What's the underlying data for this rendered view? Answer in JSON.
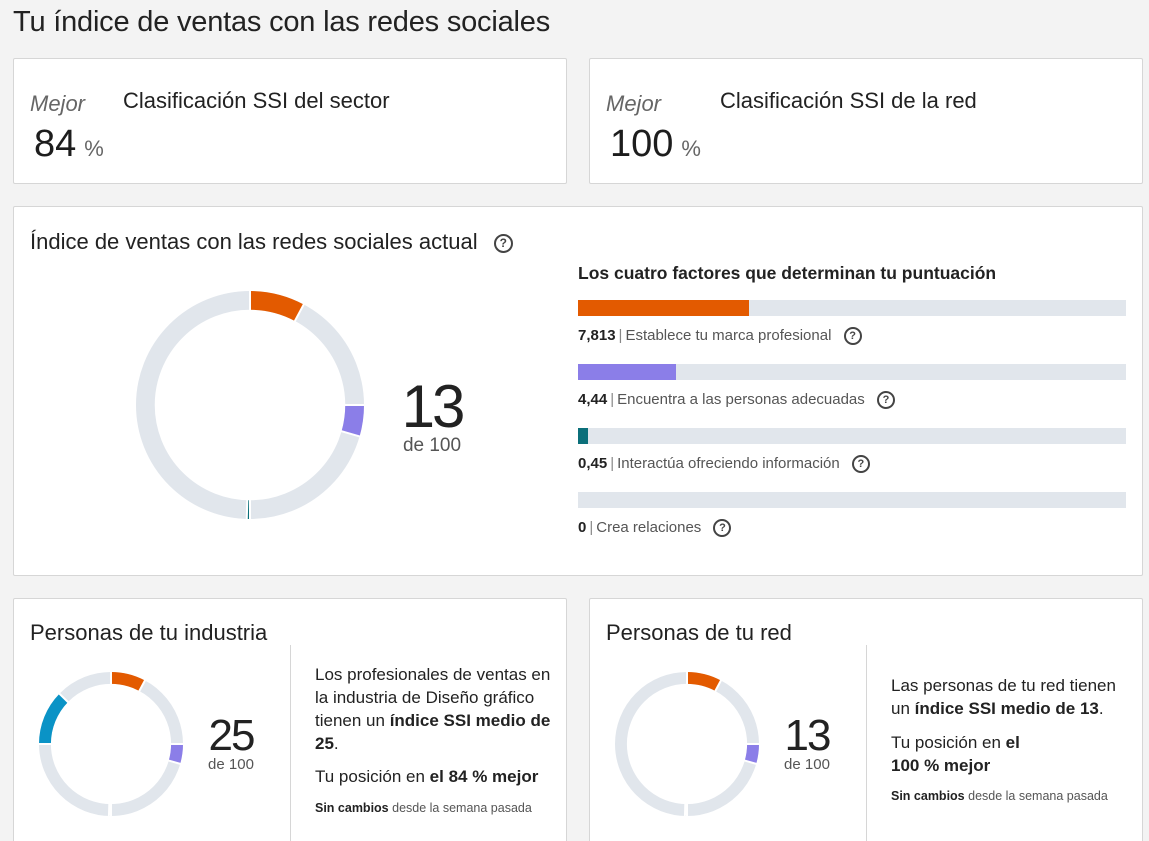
{
  "page_title": "Tu índice de ventas con las redes sociales",
  "rank_cards": [
    {
      "qualifier": "Mejor",
      "value": "84",
      "unit": "%",
      "title": "Clasificación SSI del sector"
    },
    {
      "qualifier": "Mejor",
      "value": "100",
      "unit": "%",
      "title": "Clasificación SSI de la red"
    }
  ],
  "current": {
    "title": "Índice de ventas con las redes sociales actual",
    "score": "13",
    "out_of": "de 100",
    "factors_title": "Los cuatro factores que determinan tu puntuación",
    "factors": [
      {
        "value": "7,813",
        "label": "Establece tu marca profesional",
        "fraction": 0.3125,
        "color": "#e35a00"
      },
      {
        "value": "4,44",
        "label": "Encuentra a las personas adecuadas",
        "fraction": 0.178,
        "color": "#8b7ee8"
      },
      {
        "value": "0,45",
        "label": "Interactúa ofreciendo información",
        "fraction": 0.018,
        "color": "#0b6f7a"
      },
      {
        "value": "0",
        "label": "Crea relaciones",
        "fraction": 0,
        "color": "#0a93c6"
      }
    ],
    "separator": "|"
  },
  "industry": {
    "title": "Personas de tu industria",
    "score": "25",
    "out_of": "de 100",
    "desc_plain1": "Los profesionales de ventas en la industria de Diseño gráfico tienen un ",
    "desc_bold1": "índice SSI medio de 25",
    "desc_end1": ".",
    "pos_plain": "Tu posición en ",
    "pos_bold": "el 84 % mejor",
    "change_bold": "Sin cambios",
    "change_plain": " desde la semana pasada",
    "factors": [
      7.813,
      4.44,
      0.45,
      12.3
    ]
  },
  "network": {
    "title": "Personas de tu red",
    "score": "13",
    "out_of": "de 100",
    "desc_plain1": "Las personas de tu red tienen un ",
    "desc_bold1": "índice SSI medio de 13",
    "desc_end1": ".",
    "pos_plain": "Tu posición en ",
    "pos_bold1": "el",
    "pos_bold2": "100 % mejor",
    "change_bold": "Sin cambios",
    "change_plain": " desde la semana pasada",
    "factors": [
      7.813,
      4.44,
      0.45,
      0
    ]
  },
  "colors": {
    "brand": "#e35a00",
    "find": "#8b7ee8",
    "engage": "#0b6f7a",
    "relate": "#0a93c6",
    "track": "#e1e6ec"
  },
  "icons": [
    "help-circle-icon"
  ]
}
